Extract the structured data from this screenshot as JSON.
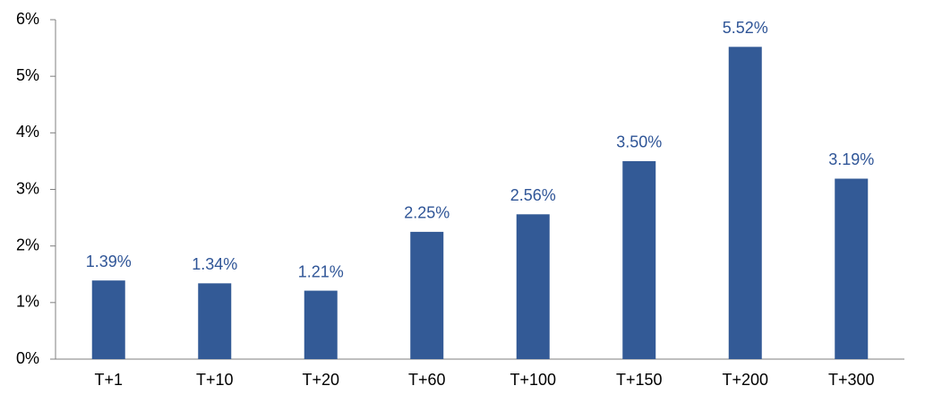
{
  "chart_data": {
    "type": "bar",
    "categories": [
      "T+1",
      "T+10",
      "T+20",
      "T+60",
      "T+100",
      "T+150",
      "T+200",
      "T+300"
    ],
    "values": [
      1.39,
      1.34,
      1.21,
      2.25,
      2.56,
      3.5,
      5.52,
      3.19
    ],
    "value_labels": [
      "1.39%",
      "1.34%",
      "1.21%",
      "2.25%",
      "2.56%",
      "3.50%",
      "5.52%",
      "3.19%"
    ],
    "color": "#335a96",
    "ylim": [
      0,
      6
    ],
    "yticks": [
      {
        "value": 0,
        "label": "0%"
      },
      {
        "value": 1,
        "label": "1%"
      },
      {
        "value": 2,
        "label": "2%"
      },
      {
        "value": 3,
        "label": "3%"
      },
      {
        "value": 4,
        "label": "4%"
      },
      {
        "value": 5,
        "label": "5%"
      },
      {
        "value": 6,
        "label": "6%"
      }
    ],
    "grid": false
  }
}
